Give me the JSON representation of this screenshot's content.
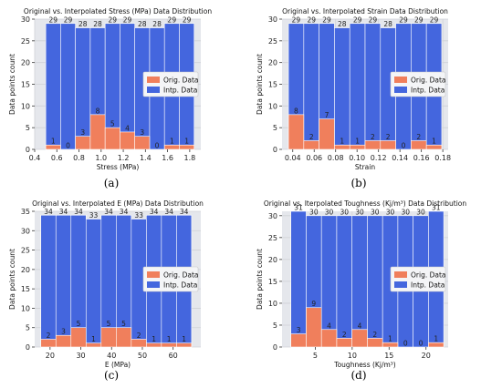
{
  "colors": {
    "orig": "#f07f5c",
    "intp": "#4466de",
    "grid": "#cfd1d6",
    "plot_bg": "#e5e7ec"
  },
  "captions": [
    "(a)",
    "(b)",
    "(c)",
    "(d)"
  ],
  "chart_data": [
    {
      "type": "bar",
      "title": "Original vs. Interpolated Stress (MPa) Data Distribution",
      "xlabel": "Stress (MPa)",
      "ylabel": "Data points count",
      "xlim": [
        0.4,
        1.9
      ],
      "ylim": [
        0,
        30
      ],
      "xticks": [
        0.4,
        0.6,
        0.8,
        1.0,
        1.2,
        1.4,
        1.6,
        1.8
      ],
      "xtick_labels": [
        "0.4",
        "0.6",
        "0.8",
        "1.0",
        "1.2",
        "1.4",
        "1.6",
        "1.8"
      ],
      "yticks": [
        0,
        5,
        10,
        15,
        20,
        25,
        30
      ],
      "grid": true,
      "legend_position": "center-right",
      "bin_edges": [
        0.5,
        0.634,
        0.768,
        0.902,
        1.036,
        1.17,
        1.304,
        1.438,
        1.572,
        1.706,
        1.84
      ],
      "series": [
        {
          "name": "Orig. Data",
          "values": [
            1,
            0,
            3,
            8,
            5,
            4,
            3,
            0,
            1,
            1
          ]
        },
        {
          "name": "Intp. Data",
          "values": [
            29,
            29,
            28,
            28,
            29,
            29,
            28,
            28,
            29,
            29
          ]
        }
      ]
    },
    {
      "type": "bar",
      "title": "Original vs. Interpolated Strain  Data Distribution",
      "xlabel": "Strain",
      "ylabel": "Data points count",
      "xlim": [
        0.03,
        0.185
      ],
      "ylim": [
        0,
        30
      ],
      "xticks": [
        0.04,
        0.06,
        0.08,
        0.1,
        0.12,
        0.14,
        0.16,
        0.18
      ],
      "xtick_labels": [
        "0.04",
        "0.06",
        "0.08",
        "0.10",
        "0.12",
        "0.14",
        "0.16",
        "0.18"
      ],
      "yticks": [
        0,
        5,
        10,
        15,
        20,
        25,
        30
      ],
      "grid": true,
      "legend_position": "center-right",
      "bin_edges": [
        0.036,
        0.0503,
        0.0646,
        0.0789,
        0.0932,
        0.1075,
        0.1218,
        0.1361,
        0.1504,
        0.1647,
        0.179
      ],
      "series": [
        {
          "name": "Orig. Data",
          "values": [
            8,
            2,
            7,
            1,
            1,
            2,
            2,
            0,
            2,
            1
          ]
        },
        {
          "name": "Intp. Data",
          "values": [
            29,
            29,
            29,
            28,
            29,
            29,
            28,
            29,
            29,
            29
          ]
        }
      ]
    },
    {
      "type": "bar",
      "title": "Original vs. Interpolated E (MPa) Data Distribution",
      "xlabel": "E (MPa)",
      "ylabel": "Data points count",
      "xlim": [
        15,
        69
      ],
      "ylim": [
        0,
        35
      ],
      "xticks": [
        20,
        30,
        40,
        50,
        60
      ],
      "xtick_labels": [
        "20",
        "30",
        "40",
        "50",
        "60"
      ],
      "yticks": [
        0,
        5,
        10,
        15,
        20,
        25,
        30,
        35
      ],
      "grid": true,
      "legend_position": "center-right",
      "bin_edges": [
        17,
        21.9,
        26.8,
        31.7,
        36.6,
        41.5,
        46.4,
        51.3,
        56.2,
        61.1,
        66
      ],
      "series": [
        {
          "name": "Orig. Data",
          "values": [
            2,
            3,
            5,
            1,
            5,
            5,
            2,
            1,
            1,
            1
          ]
        },
        {
          "name": "Intp. Data",
          "values": [
            34,
            34,
            34,
            33,
            34,
            34,
            33,
            34,
            34,
            34
          ]
        }
      ]
    },
    {
      "type": "bar",
      "title": "Original vs. Iterpolated Toughness (Kj/m³) Data Distribution",
      "xlabel": "Toughness (Kj/m³)",
      "ylabel": "Data points count",
      "xlim": [
        0.5,
        23
      ],
      "ylim": [
        0,
        31
      ],
      "xticks": [
        5,
        10,
        15,
        20
      ],
      "xtick_labels": [
        "5",
        "10",
        "15",
        "20"
      ],
      "yticks": [
        0,
        5,
        10,
        15,
        20,
        25,
        30
      ],
      "grid": true,
      "legend_position": "center-right",
      "bin_edges": [
        1.7,
        3.77,
        5.84,
        7.91,
        9.98,
        12.05,
        14.12,
        16.19,
        18.26,
        20.33,
        22.4
      ],
      "series": [
        {
          "name": "Orig. Data",
          "values": [
            3,
            9,
            4,
            2,
            4,
            2,
            1,
            0,
            0,
            1
          ]
        },
        {
          "name": "Intp. Data",
          "values": [
            31,
            30,
            30,
            30,
            30,
            30,
            30,
            30,
            30,
            31
          ]
        }
      ]
    }
  ]
}
